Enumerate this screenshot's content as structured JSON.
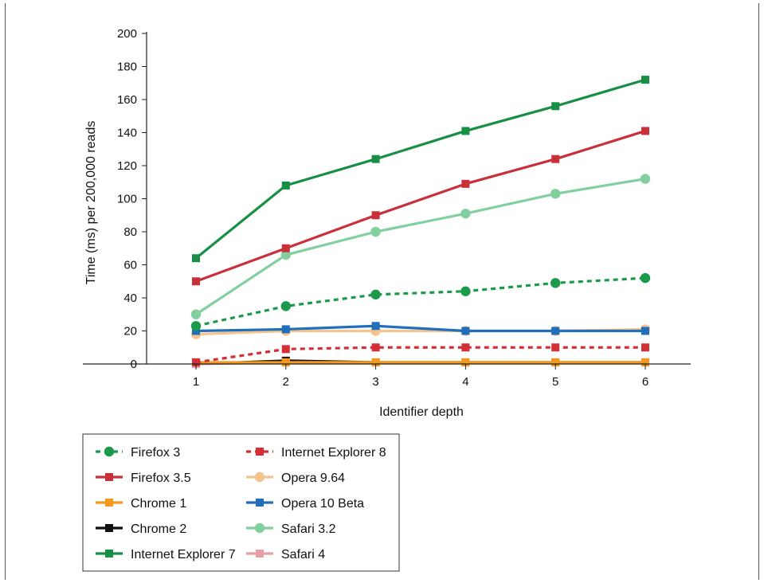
{
  "chart_data": {
    "type": "line",
    "title": "",
    "xlabel": "Identifier depth",
    "ylabel": "Time (ms) per 200,000 reads",
    "x": [
      1,
      2,
      3,
      4,
      5,
      6
    ],
    "xlim": [
      0.5,
      6.5
    ],
    "ylim": [
      0,
      200
    ],
    "yticks": [
      0,
      20,
      40,
      60,
      80,
      100,
      120,
      140,
      160,
      180,
      200
    ],
    "grid": false,
    "legend_position": "bottom-left",
    "series": [
      {
        "name": "Firefox 3",
        "color": "#1a9a4a",
        "dashed": true,
        "marker": "circle",
        "values": [
          23,
          35,
          42,
          44,
          49,
          52
        ]
      },
      {
        "name": "Internet Explorer 8",
        "color": "#d32f36",
        "dashed": true,
        "marker": "square",
        "values": [
          1,
          9,
          10,
          10,
          10,
          10
        ]
      },
      {
        "name": "Firefox 3.5",
        "color": "#c8303a",
        "dashed": false,
        "marker": "square",
        "values": [
          50,
          70,
          90,
          109,
          124,
          141
        ]
      },
      {
        "name": "Opera 9.64",
        "color": "#f5c48e",
        "dashed": false,
        "marker": "circle",
        "values": [
          18,
          20,
          20,
          20,
          20,
          21
        ]
      },
      {
        "name": "Chrome 1",
        "color": "#f39a1e",
        "dashed": false,
        "marker": "square",
        "values": [
          1,
          1,
          1,
          1,
          1,
          1
        ]
      },
      {
        "name": "Opera 10 Beta",
        "color": "#1f6fba",
        "dashed": false,
        "marker": "square",
        "values": [
          20,
          21,
          23,
          20,
          20,
          20
        ]
      },
      {
        "name": "Chrome 2",
        "color": "#111111",
        "dashed": false,
        "marker": "square",
        "values": [
          0,
          2,
          1,
          1,
          1,
          1
        ]
      },
      {
        "name": "Safari 3.2",
        "color": "#82cfa0",
        "dashed": false,
        "marker": "circle",
        "values": [
          30,
          66,
          80,
          91,
          103,
          112
        ]
      },
      {
        "name": "Internet Explorer 7",
        "color": "#178f45",
        "dashed": false,
        "marker": "square",
        "values": [
          64,
          108,
          124,
          141,
          156,
          172
        ]
      },
      {
        "name": "Safari 4",
        "color": "#e5a0a6",
        "dashed": false,
        "marker": "square",
        "values": [
          0,
          1,
          1,
          1,
          1,
          1
        ]
      }
    ]
  }
}
